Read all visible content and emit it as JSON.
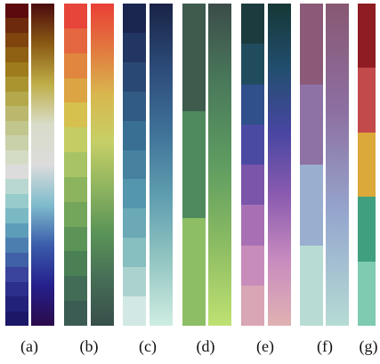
{
  "figure": {
    "panels": [
      {
        "label": "(a)",
        "discrete": [
          "#5c0a0e",
          "#6e2a0d",
          "#80450f",
          "#8f6112",
          "#9e7b1c",
          "#aa9430",
          "#b4a84d",
          "#bbb86e",
          "#c1c68d",
          "#c8d1aa",
          "#d4dcc5",
          "#dcdcdc",
          "#bad8d2",
          "#98cccc",
          "#7ab8c4",
          "#5e9dba",
          "#4c7fb0",
          "#4161a6",
          "#3a449d",
          "#2c2f8c",
          "#23227a",
          "#1b1868"
        ],
        "continuous": [
          "#4b0a0e",
          "#8a5a14",
          "#bfae48",
          "#d8dcc8",
          "#dcdcdc",
          "#7fbccc",
          "#3b5cab",
          "#25208c",
          "#2a0b4b"
        ]
      },
      {
        "label": "(b)",
        "discrete": [
          "#e8453a",
          "#e5673f",
          "#e1863f",
          "#dca442",
          "#d6c04e",
          "#c4cd63",
          "#a8c365",
          "#8cb45e",
          "#73a55a",
          "#5b9456",
          "#4b8055",
          "#426c55",
          "#3a5c53"
        ],
        "continuous": [
          "#ea3f36",
          "#e2793f",
          "#d8b84e",
          "#c6cf66",
          "#8fb45f",
          "#5a9357",
          "#466d56",
          "#384f4b"
        ]
      },
      {
        "label": "(c)",
        "discrete": [
          "#1b2650",
          "#223663",
          "#2a4874",
          "#315b85",
          "#3a6f94",
          "#4682a0",
          "#5496ab",
          "#6aa9b5",
          "#87bebf",
          "#acd2cf",
          "#d2e8e4"
        ],
        "continuous": [
          "#192347",
          "#2c4b78",
          "#3f7298",
          "#5f9eb0",
          "#94c6c2",
          "#cfede2"
        ]
      },
      {
        "label": "(d)",
        "discrete": [
          "#3e5b4e",
          "#4f8a5f",
          "#8dbe65"
        ],
        "continuous": [
          "#3b4c49",
          "#4a7a5b",
          "#5f9c61",
          "#8cbc63",
          "#bfe172"
        ]
      },
      {
        "label": "(e)",
        "discrete": [
          "#1c3b3e",
          "#214c5e",
          "#2f508a",
          "#4b4aa3",
          "#7a55a9",
          "#a870b4",
          "#c88cba",
          "#d9a6b5"
        ],
        "continuous": [
          "#153735",
          "#224e6e",
          "#4846a2",
          "#8c5cb0",
          "#c98cbf",
          "#dfb2b2"
        ]
      },
      {
        "label": "(f)",
        "discrete": [
          "#8a5a78",
          "#8e72a5",
          "#9aaed0",
          "#b8dcd4"
        ],
        "continuous": [
          "#885872",
          "#8d6fa2",
          "#96a9cf",
          "#b6dcd4"
        ]
      },
      {
        "label": "(g)",
        "discrete": [
          "#8e1c22",
          "#c34a4b",
          "#dba83a",
          "#3f9f7f",
          "#7ecbb1"
        ]
      }
    ]
  }
}
